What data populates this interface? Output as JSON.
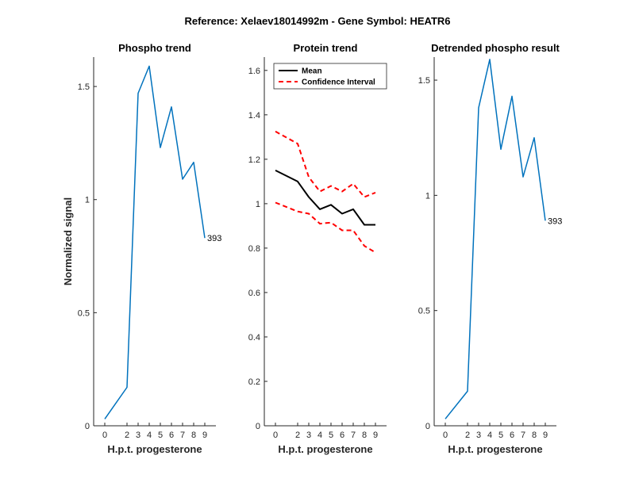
{
  "figure_title": "Reference:  Xelaev18014992m - Gene Symbol:  HEATR6",
  "chart_data": [
    {
      "type": "line",
      "title": "Phospho trend",
      "xlabel": "H.p.t. progesterone",
      "ylabel": "Normalized signal",
      "x": [
        0,
        2,
        3,
        4,
        5,
        6,
        7,
        8,
        9
      ],
      "ylim": [
        0,
        1.63
      ],
      "yticks": [
        0,
        0.5,
        1,
        1.5
      ],
      "ytick_labels": [
        "0",
        "0.5",
        "1",
        "1.5"
      ],
      "series": [
        {
          "values": [
            0.03,
            0.17,
            1.47,
            1.59,
            1.23,
            1.41,
            1.09,
            1.165,
            0.83
          ],
          "color": "#0072BD"
        }
      ],
      "end_label": "393"
    },
    {
      "type": "line",
      "title": "Protein trend",
      "xlabel": "H.p.t. progesterone",
      "ylabel": "",
      "x": [
        0,
        2,
        3,
        4,
        5,
        6,
        7,
        8,
        9
      ],
      "ylim": [
        0,
        1.66
      ],
      "yticks": [
        0,
        0.2,
        0.4,
        0.6,
        0.8,
        1,
        1.2,
        1.4,
        1.6
      ],
      "ytick_labels": [
        "0",
        "0.2",
        "0.4",
        "0.6",
        "0.8",
        "1",
        "1.2",
        "1.4",
        "1.6"
      ],
      "legend": {
        "placement": "top-left"
      },
      "series": [
        {
          "name": "Mean",
          "values": [
            1.15,
            1.1,
            1.03,
            0.975,
            0.995,
            0.955,
            0.975,
            0.905,
            0.905
          ],
          "color": "#000000",
          "dash": false
        },
        {
          "name": "Confidence Interval",
          "values": [
            1.325,
            1.27,
            1.12,
            1.055,
            1.08,
            1.055,
            1.09,
            1.03,
            1.05
          ],
          "color": "#FF0000",
          "dash": true
        },
        {
          "name": "",
          "values": [
            1.005,
            0.965,
            0.955,
            0.91,
            0.915,
            0.88,
            0.88,
            0.81,
            0.78
          ],
          "color": "#FF0000",
          "dash": true
        }
      ]
    },
    {
      "type": "line",
      "title": "Detrended phospho result",
      "xlabel": "H.p.t. progesterone",
      "ylabel": "",
      "x": [
        0,
        2,
        3,
        4,
        5,
        6,
        7,
        8,
        9
      ],
      "ylim": [
        0,
        1.6
      ],
      "yticks": [
        0,
        0.5,
        1,
        1.5
      ],
      "ytick_labels": [
        "0",
        "0.5",
        "1",
        "1.5"
      ],
      "series": [
        {
          "values": [
            0.03,
            0.15,
            1.38,
            1.59,
            1.2,
            1.43,
            1.08,
            1.25,
            0.89
          ],
          "color": "#0072BD"
        }
      ],
      "end_label": "393"
    }
  ],
  "xtick_labels": [
    "0",
    "2",
    "3",
    "4",
    "5",
    "6",
    "7",
    "8",
    "9"
  ]
}
